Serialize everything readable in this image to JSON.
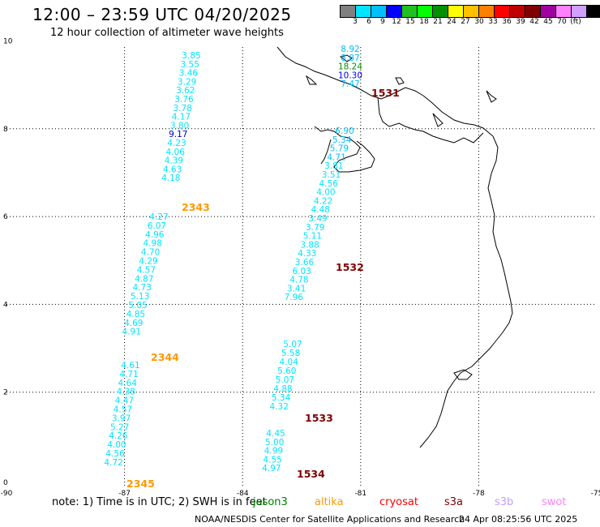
{
  "title": "12:00 – 23:59 UTC 04/20/2025",
  "subtitle": "12 hour collection of altimeter wave heights",
  "colorscale": {
    "unit": "(ft)",
    "colors": [
      "#808080",
      "#00e5ff",
      "#00c0ff",
      "#0000ff",
      "#20c020",
      "#00ff00",
      "#009000",
      "#ffff00",
      "#ffc000",
      "#ff8000",
      "#ff0000",
      "#c00000",
      "#800000",
      "#a000a0",
      "#ff80ff",
      "#d0a0ff",
      "#000000"
    ],
    "labels": [
      "3",
      "6",
      "9",
      "12",
      "15",
      "18",
      "21",
      "24",
      "27",
      "30",
      "33",
      "36",
      "39",
      "42",
      "45",
      "70"
    ]
  },
  "axes": {
    "x_ticks": [
      "-90",
      "-87",
      "-84",
      "-81",
      "-78",
      "-75"
    ],
    "y_ticks": [
      "0",
      "2",
      "4",
      "6",
      "8",
      "10"
    ]
  },
  "tracks": [
    {
      "satellite": "s3a",
      "time_label": "1531",
      "label_color": "#800000",
      "values": [
        {
          "t": "8.92",
          "c": "#00c0ff"
        },
        {
          "t": "8.87",
          "c": "#00c0ff"
        },
        {
          "t": "18.24",
          "c": "#009000"
        },
        {
          "t": "10.30",
          "c": "#0000ff"
        },
        {
          "t": "7.47",
          "c": "#00c0ff"
        }
      ]
    },
    {
      "satellite": "s3a",
      "time_label": "1532",
      "label_color": "#800000",
      "values": [
        {
          "t": "6.90",
          "c": "#00c0ff"
        },
        {
          "t": "5.34",
          "c": "#00c0ff"
        },
        {
          "t": "5.79",
          "c": "#00c0ff"
        },
        {
          "t": "4.71",
          "c": "#00c0ff"
        },
        {
          "t": "3.81",
          "c": "#00e5ff"
        },
        {
          "t": "3.51",
          "c": "#00e5ff"
        },
        {
          "t": "4.56",
          "c": "#00e5ff"
        },
        {
          "t": "4.00",
          "c": "#00e5ff"
        },
        {
          "t": "4.22",
          "c": "#00e5ff"
        },
        {
          "t": "4.48",
          "c": "#00e5ff"
        },
        {
          "t": "3.49",
          "c": "#00e5ff"
        },
        {
          "t": "3.79",
          "c": "#00e5ff"
        },
        {
          "t": "5.11",
          "c": "#00e5ff"
        },
        {
          "t": "3.88",
          "c": "#00e5ff"
        },
        {
          "t": "4.33",
          "c": "#00e5ff"
        },
        {
          "t": "3.66",
          "c": "#00e5ff"
        },
        {
          "t": "6.03",
          "c": "#00e5ff"
        },
        {
          "t": "4.78",
          "c": "#00e5ff"
        },
        {
          "t": "3.41",
          "c": "#00e5ff"
        },
        {
          "t": "7.96",
          "c": "#00e5ff"
        }
      ]
    },
    {
      "satellite": "s3a",
      "time_label": "1533",
      "label_color": "#800000",
      "values": [
        {
          "t": "5.07",
          "c": "#00e5ff"
        },
        {
          "t": "5.58",
          "c": "#00e5ff"
        },
        {
          "t": "4.04",
          "c": "#00e5ff"
        },
        {
          "t": "5.60",
          "c": "#00e5ff"
        },
        {
          "t": "5.07",
          "c": "#00e5ff"
        },
        {
          "t": "4.88",
          "c": "#00e5ff"
        },
        {
          "t": "5.34",
          "c": "#00e5ff"
        },
        {
          "t": "4.32",
          "c": "#00e5ff"
        }
      ]
    },
    {
      "satellite": "s3a",
      "time_label": "1534",
      "label_color": "#800000",
      "values": [
        {
          "t": "4.45",
          "c": "#00e5ff"
        },
        {
          "t": "5.00",
          "c": "#00e5ff"
        },
        {
          "t": "4.99",
          "c": "#00e5ff"
        },
        {
          "t": "4.55",
          "c": "#00e5ff"
        },
        {
          "t": "4.97",
          "c": "#00e5ff"
        }
      ]
    },
    {
      "satellite": "altika",
      "time_label": "2343",
      "label_color": "#ff9900",
      "values": [
        {
          "t": "3.85",
          "c": "#00e5ff"
        },
        {
          "t": "3.55",
          "c": "#00e5ff"
        },
        {
          "t": "3.46",
          "c": "#00e5ff"
        },
        {
          "t": "3.29",
          "c": "#00e5ff"
        },
        {
          "t": "3.62",
          "c": "#00e5ff"
        },
        {
          "t": "3.76",
          "c": "#00e5ff"
        },
        {
          "t": "3.78",
          "c": "#00e5ff"
        },
        {
          "t": "4.17",
          "c": "#00e5ff"
        },
        {
          "t": "3.80",
          "c": "#00e5ff"
        },
        {
          "t": "9.17",
          "c": "#0000c0"
        },
        {
          "t": "4.23",
          "c": "#00e5ff"
        },
        {
          "t": "4.06",
          "c": "#00e5ff"
        },
        {
          "t": "4.39",
          "c": "#00e5ff"
        },
        {
          "t": "4.63",
          "c": "#00e5ff"
        },
        {
          "t": "4.18",
          "c": "#00e5ff"
        }
      ]
    },
    {
      "satellite": "altika",
      "time_label": "2344",
      "label_color": "#ff9900",
      "values": [
        {
          "t": "4.27",
          "c": "#00e5ff"
        },
        {
          "t": "6.07",
          "c": "#00e5ff"
        },
        {
          "t": "4.96",
          "c": "#00e5ff"
        },
        {
          "t": "4.98",
          "c": "#00e5ff"
        },
        {
          "t": "4.70",
          "c": "#00e5ff"
        },
        {
          "t": "4.29",
          "c": "#00e5ff"
        },
        {
          "t": "4.57",
          "c": "#00e5ff"
        },
        {
          "t": "4.87",
          "c": "#00e5ff"
        },
        {
          "t": "4.73",
          "c": "#00e5ff"
        },
        {
          "t": "5.13",
          "c": "#00e5ff"
        },
        {
          "t": "5.05",
          "c": "#00e5ff"
        },
        {
          "t": "4.85",
          "c": "#00e5ff"
        },
        {
          "t": "4.69",
          "c": "#00e5ff"
        },
        {
          "t": "4.91",
          "c": "#00e5ff"
        }
      ]
    },
    {
      "satellite": "altika",
      "time_label": "2345",
      "label_color": "#ff9900",
      "values": [
        {
          "t": "4.61",
          "c": "#00e5ff"
        },
        {
          "t": "4.71",
          "c": "#00e5ff"
        },
        {
          "t": "4.64",
          "c": "#00e5ff"
        },
        {
          "t": "4.38",
          "c": "#00e5ff"
        },
        {
          "t": "4.47",
          "c": "#00e5ff"
        },
        {
          "t": "4.57",
          "c": "#00e5ff"
        },
        {
          "t": "3.97",
          "c": "#00e5ff"
        },
        {
          "t": "5.27",
          "c": "#00e5ff"
        },
        {
          "t": "4.26",
          "c": "#00e5ff"
        },
        {
          "t": "4.00",
          "c": "#00e5ff"
        },
        {
          "t": "4.56",
          "c": "#00e5ff"
        },
        {
          "t": "4.72",
          "c": "#00e5ff"
        }
      ]
    }
  ],
  "footer": {
    "note": "note:  1) Time is in UTC; 2) SWH is in feet",
    "legend": [
      {
        "name": "jason3",
        "color": "#008000"
      },
      {
        "name": "altika",
        "color": "#ff9900"
      },
      {
        "name": "cryosat",
        "color": "#ff0000"
      },
      {
        "name": "s3a",
        "color": "#800000"
      },
      {
        "name": "s3b",
        "color": "#c0a0ff"
      },
      {
        "name": "swot",
        "color": "#ff80ff"
      }
    ],
    "credit": "NOAA/NESDIS Center for Satellite Applications and Research",
    "timestamp": "24 Apr 08:25:56 UTC 2025"
  }
}
